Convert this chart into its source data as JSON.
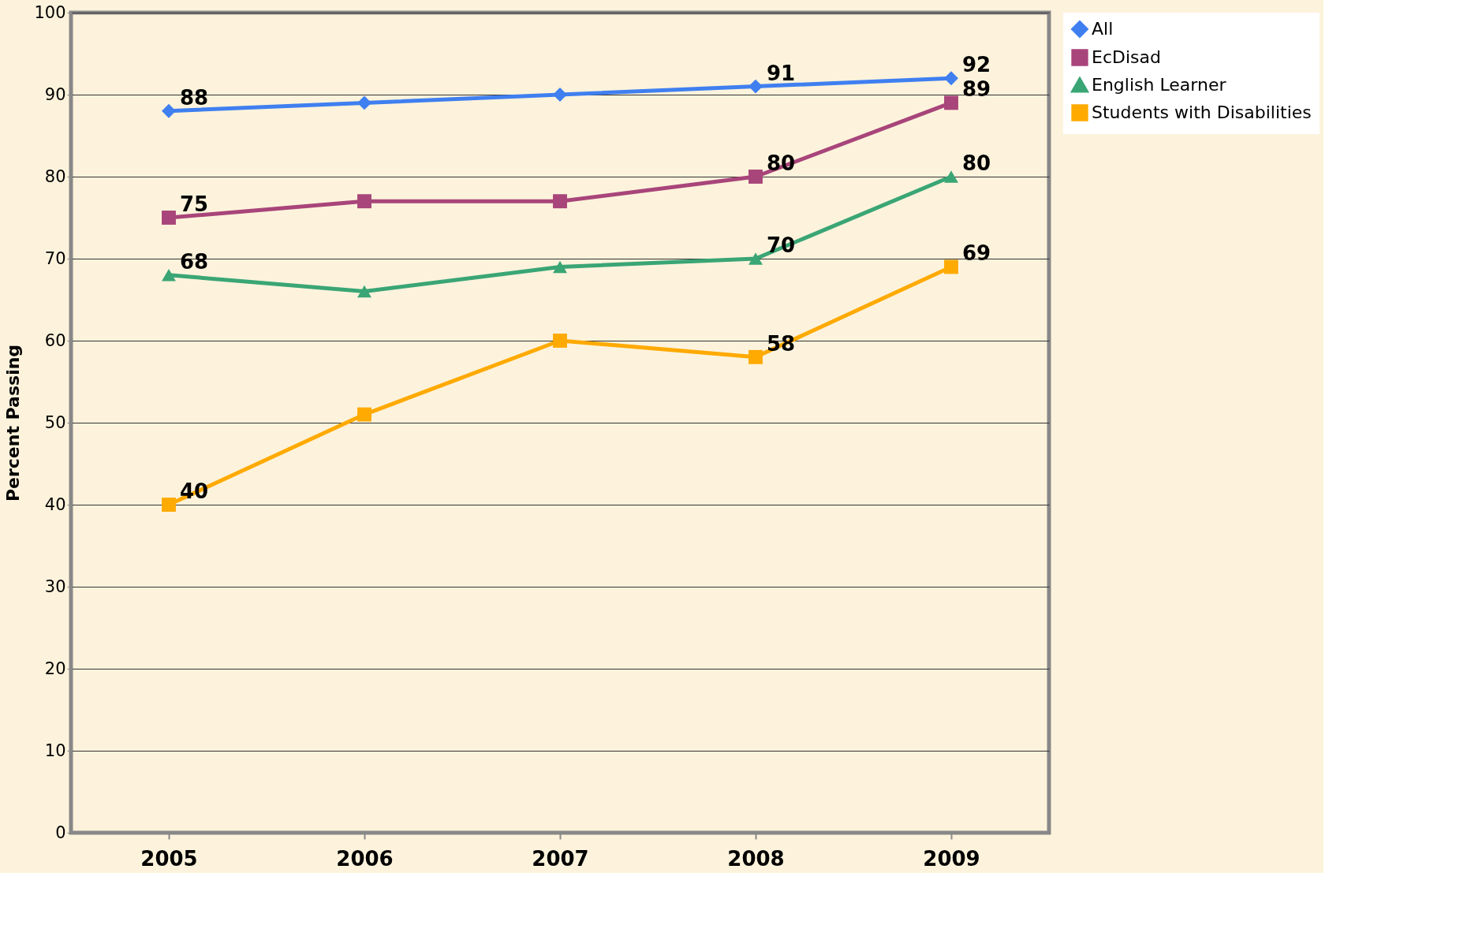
{
  "chart_data": {
    "type": "line",
    "ylabel": "Percent Passing",
    "categories": [
      "2005",
      "2006",
      "2007",
      "2008",
      "2009"
    ],
    "series": [
      {
        "name": "All",
        "color": "#3f7ff0",
        "marker": "diamond",
        "values": [
          88,
          89,
          90,
          91,
          92
        ],
        "value_labels": [
          "88",
          null,
          null,
          "91",
          "92"
        ]
      },
      {
        "name": "EcDisad",
        "color": "#a8457a",
        "marker": "square",
        "values": [
          75,
          77,
          77,
          80,
          89
        ],
        "value_labels": [
          "75",
          null,
          null,
          "80",
          "89"
        ]
      },
      {
        "name": "English Learner",
        "color": "#3aa575",
        "marker": "triangle",
        "values": [
          68,
          66,
          69,
          70,
          80
        ],
        "value_labels": [
          "68",
          null,
          null,
          "70",
          "80"
        ]
      },
      {
        "name": "Students with Disabilities",
        "color": "#ffaa00",
        "marker": "square",
        "values": [
          40,
          51,
          60,
          58,
          69
        ],
        "value_labels": [
          "40",
          null,
          null,
          "58",
          "69"
        ]
      }
    ],
    "ylim": [
      0,
      100
    ],
    "yticks": [
      0,
      10,
      20,
      30,
      40,
      50,
      60,
      70,
      80,
      90,
      100
    ],
    "grid": "y",
    "legend": "right",
    "line_style": "solid"
  }
}
